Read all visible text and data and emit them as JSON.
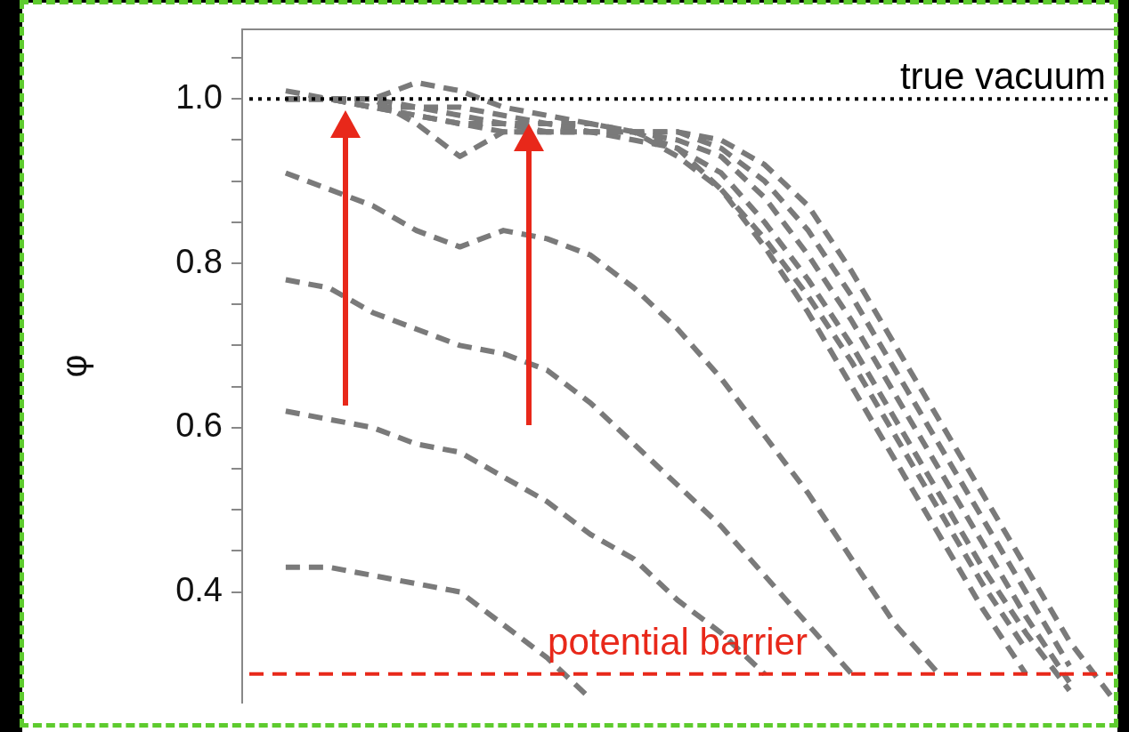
{
  "chart_data": {
    "type": "line",
    "ylabel": "φ",
    "categories": [
      null,
      null,
      null,
      null,
      null,
      null,
      null,
      null,
      null,
      null,
      null,
      null,
      null,
      null,
      null,
      null,
      null,
      null,
      null,
      null,
      null
    ],
    "series": [
      {
        "color": "#7a7a7a",
        "values": [
          null,
          0.43,
          0.43,
          0.42,
          0.41,
          0.4,
          0.36,
          0.32,
          0.27,
          null,
          null,
          null,
          null,
          null,
          null,
          null,
          null,
          null,
          null,
          null,
          null
        ]
      },
      {
        "color": "#7a7a7a",
        "values": [
          null,
          0.62,
          0.61,
          0.6,
          0.58,
          0.57,
          0.54,
          0.51,
          0.47,
          0.44,
          0.39,
          0.35,
          0.3,
          null,
          null,
          null,
          null,
          null,
          null,
          null,
          null
        ]
      },
      {
        "color": "#7a7a7a",
        "values": [
          null,
          0.78,
          0.77,
          0.74,
          0.72,
          0.7,
          0.69,
          0.67,
          0.63,
          0.58,
          0.53,
          0.48,
          0.42,
          0.36,
          0.3,
          null,
          null,
          null,
          null,
          null,
          null
        ]
      },
      {
        "color": "#7a7a7a",
        "values": [
          null,
          0.91,
          0.89,
          0.87,
          0.84,
          0.82,
          0.84,
          0.83,
          0.81,
          0.77,
          0.72,
          0.66,
          0.59,
          0.52,
          0.44,
          0.36,
          0.3,
          null,
          null,
          null,
          null
        ]
      },
      {
        "color": "#7a7a7a",
        "values": [
          null,
          1.0,
          1.0,
          1.0,
          0.97,
          0.93,
          0.96,
          0.96,
          0.96,
          0.96,
          0.94,
          0.89,
          0.82,
          0.74,
          0.65,
          0.56,
          0.47,
          0.38,
          0.3,
          null,
          null
        ]
      },
      {
        "color": "#7a7a7a",
        "values": [
          null,
          1.01,
          1.0,
          1.0,
          1.02,
          1.01,
          0.99,
          0.98,
          0.97,
          0.96,
          0.93,
          0.89,
          0.83,
          0.76,
          0.68,
          0.59,
          0.5,
          0.41,
          0.33,
          null,
          null
        ]
      },
      {
        "color": "#7a7a7a",
        "values": [
          null,
          1.0,
          1.0,
          0.99,
          0.98,
          0.97,
          0.96,
          0.96,
          0.96,
          0.95,
          0.94,
          0.91,
          0.85,
          0.78,
          0.7,
          0.61,
          0.52,
          0.43,
          0.35,
          0.28,
          null
        ]
      },
      {
        "color": "#7a7a7a",
        "values": [
          null,
          1.0,
          1.0,
          0.99,
          0.98,
          0.97,
          0.97,
          0.96,
          0.96,
          0.96,
          0.95,
          0.93,
          0.88,
          0.81,
          0.73,
          0.64,
          0.55,
          0.46,
          0.37,
          0.29,
          null
        ]
      },
      {
        "color": "#7a7a7a",
        "values": [
          null,
          1.0,
          1.0,
          0.99,
          0.99,
          0.98,
          0.97,
          0.97,
          0.96,
          0.96,
          0.96,
          0.94,
          0.9,
          0.84,
          0.76,
          0.67,
          0.58,
          0.49,
          0.4,
          0.31,
          null
        ]
      },
      {
        "color": "#7a7a7a",
        "values": [
          null,
          1.0,
          1.0,
          1.0,
          0.99,
          0.99,
          0.98,
          0.97,
          0.97,
          0.96,
          0.96,
          0.95,
          0.92,
          0.87,
          0.79,
          0.7,
          0.61,
          0.52,
          0.43,
          0.34,
          0.27
        ]
      }
    ],
    "ylim": [
      0.265,
      1.085
    ],
    "yticks": [
      {
        "value": 0.4,
        "label": "0.4"
      },
      {
        "value": 0.45,
        "label": null
      },
      {
        "value": 0.5,
        "label": null
      },
      {
        "value": 0.55,
        "label": null
      },
      {
        "value": 0.6,
        "label": "0.6"
      },
      {
        "value": 0.65,
        "label": null
      },
      {
        "value": 0.7,
        "label": null
      },
      {
        "value": 0.75,
        "label": null
      },
      {
        "value": 0.8,
        "label": "0.8"
      },
      {
        "value": 0.85,
        "label": null
      },
      {
        "value": 0.9,
        "label": null
      },
      {
        "value": 0.95,
        "label": null
      },
      {
        "value": 1.0,
        "label": "1.0"
      },
      {
        "value": 1.05,
        "label": null
      }
    ],
    "tick_labels": "y",
    "line_style": "dashed",
    "ref_lines": [
      {
        "axis": "y",
        "value": 1.0,
        "label": "true vacuum",
        "color": "#000000",
        "line_style": "dotted"
      },
      {
        "axis": "y",
        "value": 0.3,
        "label": "potential barrier",
        "color": "#e8281a",
        "line_style": "dashed"
      }
    ]
  }
}
